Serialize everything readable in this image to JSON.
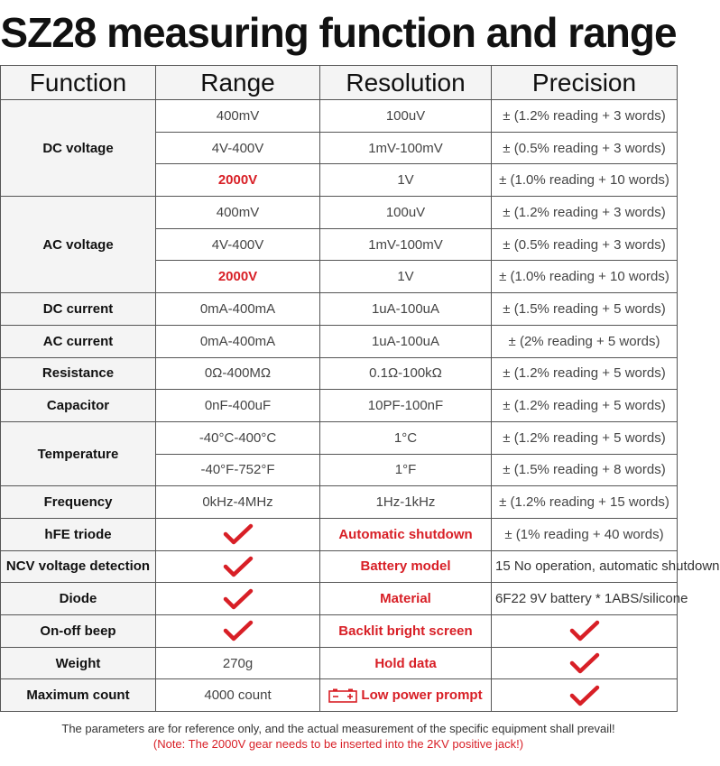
{
  "title": "SZ28 measuring function and range",
  "headers": [
    "Function",
    "Range",
    "Resolution",
    "Precision"
  ],
  "rows": {
    "dc_voltage": {
      "function": "DC voltage",
      "items": [
        {
          "range": "400mV",
          "resolution": "100uV",
          "precision": "± (1.2% reading + 3 words)"
        },
        {
          "range": "4V-400V",
          "resolution": "1mV-100mV",
          "precision": "± (0.5% reading + 3 words)"
        },
        {
          "range": "2000V",
          "resolution": "1V",
          "precision": "± (1.0% reading + 10 words)"
        }
      ]
    },
    "ac_voltage": {
      "function": "AC voltage",
      "items": [
        {
          "range": "400mV",
          "resolution": "100uV",
          "precision": "± (1.2% reading + 3 words)"
        },
        {
          "range": "4V-400V",
          "resolution": "1mV-100mV",
          "precision": "± (0.5% reading + 3 words)"
        },
        {
          "range": "2000V",
          "resolution": "1V",
          "precision": "± (1.0% reading + 10 words)"
        }
      ]
    },
    "dc_current": {
      "function": "DC current",
      "range": "0mA-400mA",
      "resolution": "1uA-100uA",
      "precision": "± (1.5% reading + 5 words)"
    },
    "ac_current": {
      "function": "AC current",
      "range": "0mA-400mA",
      "resolution": "1uA-100uA",
      "precision": "± (2% reading + 5 words)"
    },
    "resistance": {
      "function": "Resistance",
      "range": "0Ω-400MΩ",
      "resolution": "0.1Ω-100kΩ",
      "precision": "± (1.2% reading + 5 words)"
    },
    "capacitor": {
      "function": "Capacitor",
      "range": "0nF-400uF",
      "resolution": "10PF-100nF",
      "precision": "± (1.2% reading + 5 words)"
    },
    "temperature": {
      "function": "Temperature",
      "items": [
        {
          "range": "-40°C-400°C",
          "resolution": "1°C",
          "precision": "± (1.2% reading + 5 words)"
        },
        {
          "range": "-40°F-752°F",
          "resolution": "1°F",
          "precision": "± (1.5% reading + 8 words)"
        }
      ]
    },
    "frequency": {
      "function": "Frequency",
      "range": "0kHz-4MHz",
      "resolution": "1Hz-1kHz",
      "precision": "± (1.2% reading + 15 words)"
    }
  },
  "features": [
    {
      "function": "hFE triode",
      "feature": "Automatic shutdown",
      "detail": "± (1% reading + 40 words)"
    },
    {
      "function": "NCV voltage detection",
      "feature": "Battery model",
      "detail": "15 No operation, automatic shutdown"
    },
    {
      "function": "Diode",
      "feature": "Material",
      "detail": "6F22 9V battery * 1ABS/silicone"
    },
    {
      "function": "On-off beep",
      "feature": "Backlit bright screen"
    },
    {
      "function": "Weight",
      "value": "270g",
      "feature": "Hold data"
    },
    {
      "function": "Maximum count",
      "value": "4000 count",
      "feature": "Low power prompt"
    }
  ],
  "footer": {
    "line1": "The parameters are for reference only, and the actual measurement of the specific equipment shall prevail!",
    "line2": "(Note: The 2000V gear needs to be inserted into the 2KV positive jack!)"
  },
  "colors": {
    "accent": "#d81f26",
    "header_bg": "#f4f4f4",
    "border": "#555555"
  },
  "icons": {
    "check": "red-checkmark-icon",
    "battery": "battery-icon"
  }
}
